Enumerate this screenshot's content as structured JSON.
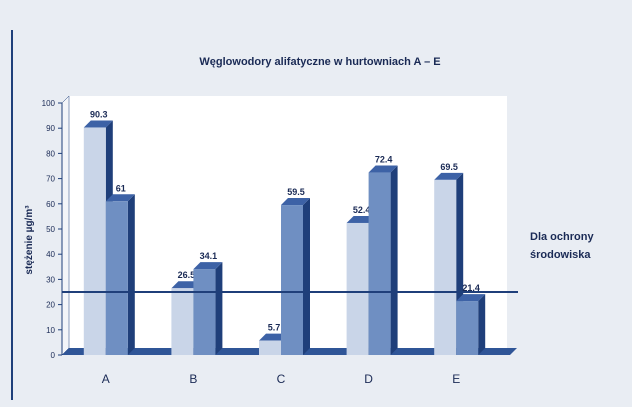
{
  "chart_data": {
    "type": "bar3d",
    "title": "Węglowodory alifatyczne w hurtowniach A – E",
    "y_label": "stężenie µg/m³",
    "categories": [
      "A",
      "B",
      "C",
      "D",
      "E"
    ],
    "series": [
      {
        "color": "#c9d5e8",
        "values": [
          90.3,
          26.5,
          5.7,
          52.4,
          69.5
        ]
      },
      {
        "color": "#6f8fc2",
        "values": [
          61,
          34.1,
          59.5,
          72.4,
          21.4
        ]
      }
    ],
    "reference_line": {
      "value": 25,
      "label": "Dla ochrony środowiska",
      "color": "#1f3f7a"
    },
    "ylim": [
      0,
      100
    ],
    "yticks": [
      0,
      10,
      20,
      30,
      40,
      50,
      60,
      70,
      80,
      90,
      100
    ]
  }
}
